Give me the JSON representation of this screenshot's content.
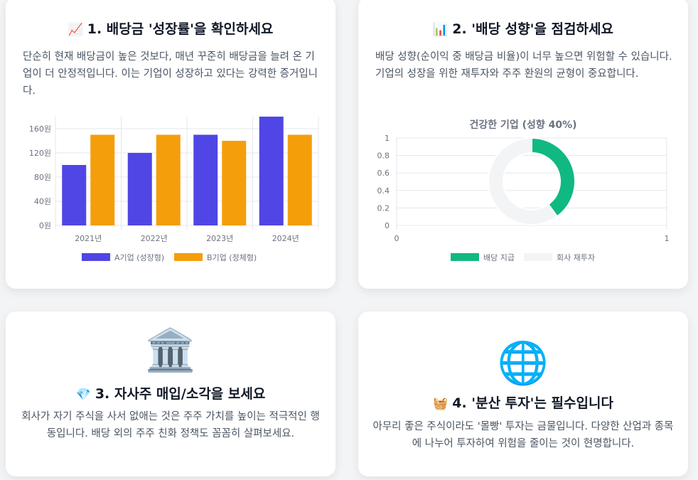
{
  "cards": [
    {
      "emoji": "📈",
      "title": "1. 배당금 '성장률'을 확인하세요",
      "desc": "단순히 현재 배당금이 높은 것보다, 매년 꾸준히 배당금을 늘려 온 기업이 더 안정적입니다. 이는 기업이 성장하고 있다는 강력한 증거입니다."
    },
    {
      "emoji": "📊",
      "title": "2. '배당 성향'을 점검하세요",
      "desc": "배당 성향(순이익 중 배당금 비율)이 너무 높으면 위험할 수 있습니다. 기업의 성장을 위한 재투자와 주주 환원의 균형이 중요합니다."
    },
    {
      "big_emoji": "🏛️",
      "emoji": "💎",
      "title": "3. 자사주 매입/소각을 보세요",
      "desc": "회사가 자기 주식을 사서 없애는 것은 주주 가치를 높이는 적극적인 행동입니다. 배당 외의 주주 친화 정책도 꼼꼼히 살펴보세요."
    },
    {
      "big_emoji": "🌐",
      "emoji": "🧺",
      "title": "4. '분산 투자'는 필수입니다",
      "desc": "아무리 좋은 주식이라도 '몰빵' 투자는 금물입니다. 다양한 산업과 종목에 나누어 투자하여 위험을 줄이는 것이 현명합니다."
    }
  ],
  "chart_data": [
    {
      "type": "bar",
      "categories": [
        "2021년",
        "2022년",
        "2023년",
        "2024년"
      ],
      "y_ticks": [
        "0원",
        "40원",
        "80원",
        "120원",
        "160원"
      ],
      "ylim": [
        0,
        180
      ],
      "grid": true,
      "legend_position": "bottom",
      "series": [
        {
          "name": "A기업 (성장형)",
          "values": [
            100,
            120,
            150,
            180
          ],
          "color": "#4f46e5"
        },
        {
          "name": "B기업 (정체형)",
          "values": [
            150,
            150,
            140,
            150
          ],
          "color": "#f59e0b"
        }
      ]
    },
    {
      "type": "pie",
      "title": "건강한 기업 (성향 40%)",
      "y_ticks": [
        "0",
        "0.2",
        "0.4",
        "0.6",
        "0.8",
        "1"
      ],
      "x_ticks": [
        "0",
        "1"
      ],
      "grid": true,
      "legend_position": "bottom",
      "slices": [
        {
          "name": "배당 지급",
          "value": 40,
          "color": "#10b981"
        },
        {
          "name": "회사 재투자",
          "value": 60,
          "color": "#f3f4f6"
        }
      ]
    }
  ]
}
